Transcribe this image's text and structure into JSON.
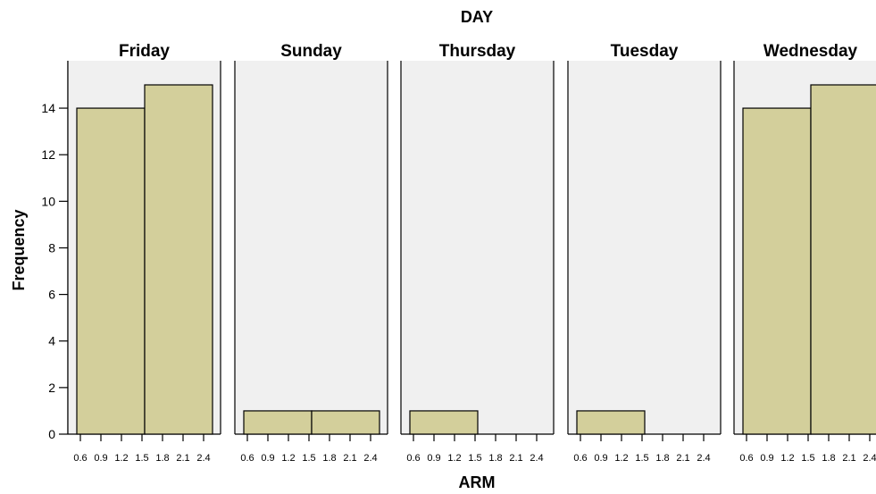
{
  "chart_data": {
    "type": "bar",
    "title": "DAY",
    "xlabel": "ARM",
    "ylabel": "Frequency",
    "ylim": [
      0,
      15.5
    ],
    "yticks": [
      "0",
      "2",
      "4",
      "6",
      "8",
      "10",
      "12",
      "14"
    ],
    "xtick_labels": [
      "0.6",
      "0.9",
      "1.2",
      "1.5",
      "1.8",
      "2.1",
      "2.4"
    ],
    "bins": [
      "0.6–1.5",
      "1.5–2.4"
    ],
    "colors": {
      "bar_fill": "#d3cf9b",
      "panel_bg": "#f0f0f0",
      "outline": "#000000"
    },
    "panels": [
      {
        "name": "Friday",
        "values": [
          14,
          15
        ]
      },
      {
        "name": "Sunday",
        "values": [
          1,
          1
        ]
      },
      {
        "name": "Thursday",
        "values": [
          1,
          0
        ]
      },
      {
        "name": "Tuesday",
        "values": [
          1,
          0
        ]
      },
      {
        "name": "Wednesday",
        "values": [
          14,
          15
        ]
      }
    ]
  }
}
